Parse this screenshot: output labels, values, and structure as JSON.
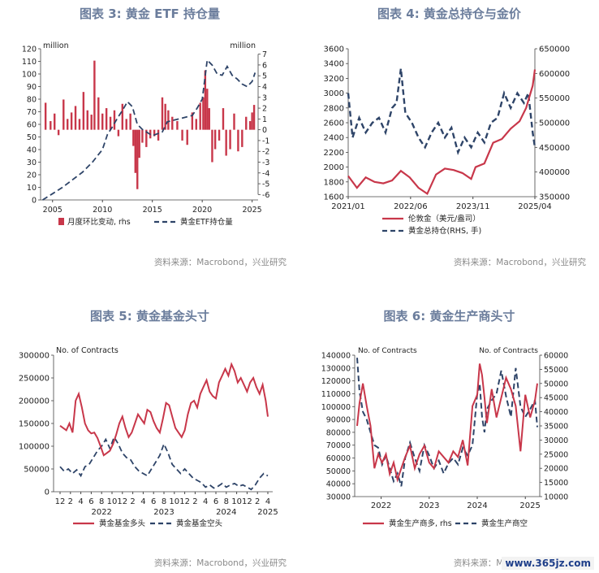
{
  "colors": {
    "red": "#c8374a",
    "navy": "#2e4468",
    "title": "#6b7d9c",
    "source": "#8a8a8a",
    "axis": "#444444"
  },
  "panels": {
    "p3": {
      "title": "图表 3:  黄金 ETF 持仓量",
      "source": "资料来源：Macrobond，兴业研究",
      "left_unit": "million",
      "right_unit": "million",
      "legend_bar": "月度环比变动, rhs",
      "legend_line": "黄金ETF持仓量"
    },
    "p4": {
      "title": "图表 4:  黄金总持仓与金价",
      "source": "资料来源：Macrobond，兴业研究",
      "legend_line1": "伦敦金（美元/盎司）",
      "legend_line2": "黄金总持仓(RHS, 手)"
    },
    "p5": {
      "title": "图表 5:  黄金基金头寸",
      "source": "资料来源：Macrobond，兴业研究",
      "unit": "No. of Contracts",
      "legend_line1": "黄金基金多头",
      "legend_line2": "黄金基金空头"
    },
    "p6": {
      "title": "图表 6:  黄金生产商头寸",
      "source": "资料来源：Macrobond，兴业研究",
      "left_unit": "No. of Contracts",
      "right_unit": "No. of Contracts",
      "legend_line1": "黄金生产商多, rhs",
      "legend_line2": "黄金生产商空"
    }
  },
  "watermark": "www.365jz.com",
  "chart_data": [
    {
      "id": "p3",
      "type": "bar",
      "x_ticks": [
        "2005",
        "2010",
        "2015",
        "2020",
        "2025"
      ],
      "x_range": [
        2003.8,
        2025.6
      ],
      "ylim_left": [
        0,
        120
      ],
      "yticks_left": [
        0,
        10,
        20,
        30,
        40,
        50,
        60,
        70,
        80,
        90,
        100,
        110,
        120
      ],
      "ylim_right": [
        -6.5,
        7.5
      ],
      "yticks_right": [
        -6,
        -5,
        -4,
        -3,
        -2,
        -1,
        0,
        1,
        2,
        3,
        4,
        5,
        6,
        7
      ],
      "series": [
        {
          "name": "黄金ETF持仓量",
          "axis": "left",
          "style": "dashed",
          "x": [
            2004.0,
            2005.0,
            2006.0,
            2007.0,
            2008.0,
            2009.0,
            2010.0,
            2010.5,
            2011.0,
            2011.5,
            2012.0,
            2012.5,
            2013.0,
            2013.5,
            2014.0,
            2015.0,
            2016.0,
            2016.5,
            2017.0,
            2018.0,
            2019.0,
            2019.5,
            2020.0,
            2020.5,
            2021.0,
            2021.5,
            2022.0,
            2022.5,
            2023.0,
            2023.5,
            2024.0,
            2024.5,
            2025.0,
            2025.3
          ],
          "values": [
            0,
            5,
            10,
            16,
            22,
            30,
            40,
            52,
            58,
            65,
            71,
            78,
            74,
            60,
            56,
            51,
            54,
            62,
            63,
            65,
            67,
            73,
            80,
            111,
            107,
            100,
            99,
            106,
            99,
            96,
            92,
            90,
            94,
            101
          ]
        },
        {
          "name": "月度环比变动",
          "axis": "right",
          "style": "bars",
          "x": [
            2004.3,
            2004.8,
            2005.2,
            2005.6,
            2006.1,
            2006.5,
            2006.9,
            2007.3,
            2007.7,
            2008.1,
            2008.5,
            2008.9,
            2009.2,
            2009.6,
            2010.0,
            2010.4,
            2010.8,
            2011.2,
            2011.6,
            2012.0,
            2012.4,
            2012.8,
            2013.1,
            2013.3,
            2013.5,
            2013.7,
            2014.0,
            2014.4,
            2014.8,
            2015.2,
            2015.6,
            2016.0,
            2016.3,
            2016.6,
            2017.0,
            2017.5,
            2018.0,
            2018.5,
            2019.0,
            2019.4,
            2019.8,
            2020.1,
            2020.3,
            2020.5,
            2020.7,
            2021.0,
            2021.3,
            2021.7,
            2022.1,
            2022.4,
            2022.8,
            2023.2,
            2023.6,
            2024.0,
            2024.4,
            2024.8,
            2025.0,
            2025.2
          ],
          "values": [
            2.5,
            0.8,
            1.5,
            -0.5,
            2.8,
            1.0,
            1.6,
            2.2,
            1.0,
            3.5,
            1.8,
            1.4,
            6.4,
            3.0,
            1.5,
            2.0,
            1.2,
            1.8,
            -0.6,
            2.4,
            1.0,
            1.5,
            -1.5,
            -4.0,
            -5.5,
            -2.6,
            -1.2,
            -1.6,
            -0.8,
            -0.6,
            -1.0,
            3.0,
            2.4,
            1.8,
            1.2,
            0.8,
            -1.0,
            -1.4,
            1.6,
            1.0,
            2.5,
            3.0,
            5.5,
            3.8,
            2.0,
            -3.0,
            -1.8,
            -1.0,
            2.0,
            -2.4,
            -1.8,
            1.5,
            -2.0,
            -1.6,
            1.2,
            0.8,
            1.6,
            2.3
          ]
        }
      ]
    },
    {
      "id": "p4",
      "type": "line",
      "x_ticks": [
        "2021/01",
        "2022/06",
        "2023/11",
        "2025/04"
      ],
      "x_range": [
        2021.0,
        2025.25
      ],
      "ylim_left": [
        1600,
        3600
      ],
      "yticks_left": [
        1600,
        1800,
        2000,
        2200,
        2400,
        2600,
        2800,
        3000,
        3200,
        3400,
        3600
      ],
      "ylim_right": [
        350000,
        650000
      ],
      "yticks_right": [
        350000,
        400000,
        450000,
        500000,
        550000,
        600000,
        650000
      ],
      "series": [
        {
          "name": "伦敦金（美元/盎司）",
          "axis": "left",
          "style": "solid",
          "x": [
            2021.0,
            2021.2,
            2021.4,
            2021.6,
            2021.8,
            2022.0,
            2022.2,
            2022.4,
            2022.6,
            2022.8,
            2023.0,
            2023.2,
            2023.4,
            2023.6,
            2023.8,
            2023.9,
            2024.1,
            2024.3,
            2024.5,
            2024.7,
            2024.9,
            2025.05,
            2025.2,
            2025.25
          ],
          "values": [
            1880,
            1720,
            1860,
            1800,
            1780,
            1820,
            1950,
            1860,
            1720,
            1640,
            1900,
            1980,
            1960,
            1920,
            1840,
            2000,
            2050,
            2330,
            2380,
            2520,
            2620,
            2800,
            3100,
            3320
          ]
        },
        {
          "name": "黄金总持仓(RHS, 手)",
          "axis": "right",
          "style": "dashed",
          "x": [
            2021.0,
            2021.1,
            2021.25,
            2021.4,
            2021.55,
            2021.7,
            2021.85,
            2022.0,
            2022.1,
            2022.2,
            2022.3,
            2022.45,
            2022.6,
            2022.75,
            2022.9,
            2023.05,
            2023.2,
            2023.35,
            2023.5,
            2023.65,
            2023.8,
            2023.95,
            2024.1,
            2024.25,
            2024.4,
            2024.55,
            2024.7,
            2024.85,
            2025.0,
            2025.1,
            2025.2,
            2025.25
          ],
          "values": [
            560000,
            470000,
            510000,
            480000,
            500000,
            510000,
            480000,
            530000,
            540000,
            610000,
            520000,
            500000,
            470000,
            450000,
            480000,
            500000,
            470000,
            490000,
            440000,
            470000,
            450000,
            480000,
            460000,
            500000,
            510000,
            560000,
            530000,
            560000,
            540000,
            560000,
            480000,
            450000
          ]
        }
      ]
    },
    {
      "id": "p5",
      "type": "line",
      "x_ticks": [
        "12",
        "2",
        "4",
        "6",
        "8",
        "10",
        "12",
        "2",
        "4",
        "6",
        "8",
        "10",
        "12",
        "2",
        "4",
        "6",
        "8",
        "10",
        "12",
        "2",
        "4"
      ],
      "year_labels": [
        "2022",
        "2023",
        "2024",
        "2025"
      ],
      "ylim": [
        0,
        300000
      ],
      "yticks": [
        0,
        50000,
        100000,
        150000,
        200000,
        250000,
        300000
      ],
      "series": [
        {
          "name": "黄金基金多头",
          "style": "solid",
          "x": [
            0,
            0.3,
            0.6,
            0.9,
            1.2,
            1.5,
            1.8,
            2.1,
            2.4,
            2.7,
            3.0,
            3.3,
            3.6,
            3.9,
            4.2,
            4.5,
            4.8,
            5.1,
            5.4,
            5.7,
            6.0,
            6.3,
            6.6,
            6.9,
            7.2,
            7.5,
            7.8,
            8.1,
            8.4,
            8.7,
            9.0,
            9.3,
            9.6,
            9.9,
            10.2,
            10.5,
            10.8,
            11.1,
            11.4,
            11.7,
            12.0,
            12.3,
            12.6,
            12.9,
            13.2,
            13.5,
            13.8,
            14.1,
            14.4,
            14.7,
            15.0,
            15.3,
            15.6,
            15.9,
            16.2,
            16.5,
            16.8,
            17.1,
            17.4,
            17.7,
            18.0,
            18.3,
            18.6,
            18.9,
            19.2,
            19.5,
            19.8,
            20.0
          ],
          "values": [
            145000,
            140000,
            135000,
            150000,
            130000,
            200000,
            215000,
            185000,
            150000,
            135000,
            128000,
            130000,
            118000,
            100000,
            80000,
            85000,
            90000,
            105000,
            125000,
            150000,
            165000,
            140000,
            120000,
            130000,
            150000,
            170000,
            160000,
            150000,
            180000,
            175000,
            155000,
            140000,
            130000,
            160000,
            195000,
            190000,
            165000,
            140000,
            130000,
            120000,
            135000,
            170000,
            195000,
            200000,
            185000,
            215000,
            230000,
            245000,
            220000,
            210000,
            205000,
            240000,
            255000,
            270000,
            255000,
            280000,
            265000,
            240000,
            250000,
            235000,
            220000,
            240000,
            250000,
            230000,
            215000,
            235000,
            200000,
            165000
          ]
        },
        {
          "name": "黄金基金空头",
          "style": "dashed",
          "x": [
            0,
            0.4,
            0.8,
            1.2,
            1.6,
            2.0,
            2.4,
            2.8,
            3.2,
            3.6,
            4.0,
            4.4,
            4.8,
            5.2,
            5.6,
            6.0,
            6.4,
            6.8,
            7.2,
            7.6,
            8.0,
            8.4,
            8.8,
            9.2,
            9.6,
            10.0,
            10.4,
            10.8,
            11.2,
            11.6,
            12.0,
            12.4,
            12.8,
            13.2,
            13.6,
            14.0,
            14.4,
            14.8,
            15.2,
            15.6,
            16.0,
            16.4,
            16.8,
            17.2,
            17.6,
            18.0,
            18.4,
            18.8,
            19.2,
            19.6,
            20.0
          ],
          "values": [
            55000,
            45000,
            50000,
            40000,
            48000,
            35000,
            55000,
            60000,
            75000,
            90000,
            100000,
            115000,
            95000,
            120000,
            105000,
            85000,
            75000,
            70000,
            55000,
            45000,
            40000,
            35000,
            50000,
            65000,
            80000,
            105000,
            85000,
            60000,
            50000,
            40000,
            50000,
            40000,
            30000,
            25000,
            20000,
            10000,
            15000,
            8000,
            12000,
            18000,
            10000,
            15000,
            18000,
            12000,
            15000,
            10000,
            5000,
            15000,
            30000,
            40000,
            35000
          ]
        }
      ]
    },
    {
      "id": "p6",
      "type": "line",
      "year_labels": [
        "2022",
        "2023",
        "2024",
        "2025"
      ],
      "x_range": [
        2021.45,
        2025.3
      ],
      "ylim_left": [
        30000,
        140000
      ],
      "yticks_left": [
        30000,
        40000,
        50000,
        60000,
        70000,
        80000,
        90000,
        100000,
        110000,
        120000,
        130000,
        140000
      ],
      "ylim_right": [
        10000,
        60000
      ],
      "yticks_right": [
        10000,
        15000,
        20000,
        25000,
        30000,
        35000,
        40000,
        45000,
        50000,
        55000,
        60000
      ],
      "series": [
        {
          "name": "黄金生产商多, rhs",
          "axis": "right",
          "style": "solid",
          "x": [
            2021.5,
            2021.55,
            2021.62,
            2021.7,
            2021.78,
            2021.86,
            2021.94,
            2022.02,
            2022.1,
            2022.18,
            2022.26,
            2022.34,
            2022.42,
            2022.5,
            2022.6,
            2022.7,
            2022.8,
            2022.9,
            2023.0,
            2023.1,
            2023.2,
            2023.3,
            2023.4,
            2023.5,
            2023.6,
            2023.7,
            2023.8,
            2023.9,
            2024.0,
            2024.05,
            2024.1,
            2024.15,
            2024.2,
            2024.3,
            2024.4,
            2024.5,
            2024.6,
            2024.7,
            2024.8,
            2024.9,
            2025.0,
            2025.1,
            2025.2,
            2025.25
          ],
          "values": [
            35000,
            43000,
            50000,
            42000,
            35000,
            20000,
            25000,
            22000,
            25000,
            18000,
            22000,
            16000,
            20000,
            24000,
            28000,
            20000,
            25000,
            28000,
            22000,
            20000,
            26000,
            24000,
            22000,
            26000,
            24000,
            30000,
            21000,
            42000,
            46000,
            57000,
            53000,
            45000,
            36000,
            48000,
            38000,
            45000,
            52000,
            48000,
            42000,
            26000,
            46000,
            38000,
            44000,
            50000
          ]
        },
        {
          "name": "黄金生产商空",
          "axis": "left",
          "style": "dashed",
          "x": [
            2021.5,
            2021.55,
            2021.62,
            2021.7,
            2021.78,
            2021.86,
            2021.94,
            2022.02,
            2022.1,
            2022.18,
            2022.26,
            2022.34,
            2022.42,
            2022.5,
            2022.6,
            2022.7,
            2022.8,
            2022.9,
            2023.0,
            2023.1,
            2023.2,
            2023.3,
            2023.4,
            2023.5,
            2023.6,
            2023.7,
            2023.8,
            2023.9,
            2024.0,
            2024.05,
            2024.1,
            2024.15,
            2024.2,
            2024.3,
            2024.4,
            2024.5,
            2024.6,
            2024.7,
            2024.8,
            2024.9,
            2025.0,
            2025.1,
            2025.2,
            2025.25
          ],
          "values": [
            138000,
            112000,
            96000,
            90000,
            80000,
            70000,
            68000,
            55000,
            62000,
            52000,
            42000,
            48000,
            38000,
            60000,
            72000,
            60000,
            50000,
            70000,
            62000,
            52000,
            58000,
            48000,
            56000,
            60000,
            55000,
            68000,
            62000,
            70000,
            110000,
            118000,
            92000,
            80000,
            98000,
            105000,
            110000,
            128000,
            108000,
            92000,
            130000,
            100000,
            92000,
            98000,
            105000,
            84000
          ]
        }
      ]
    }
  ]
}
